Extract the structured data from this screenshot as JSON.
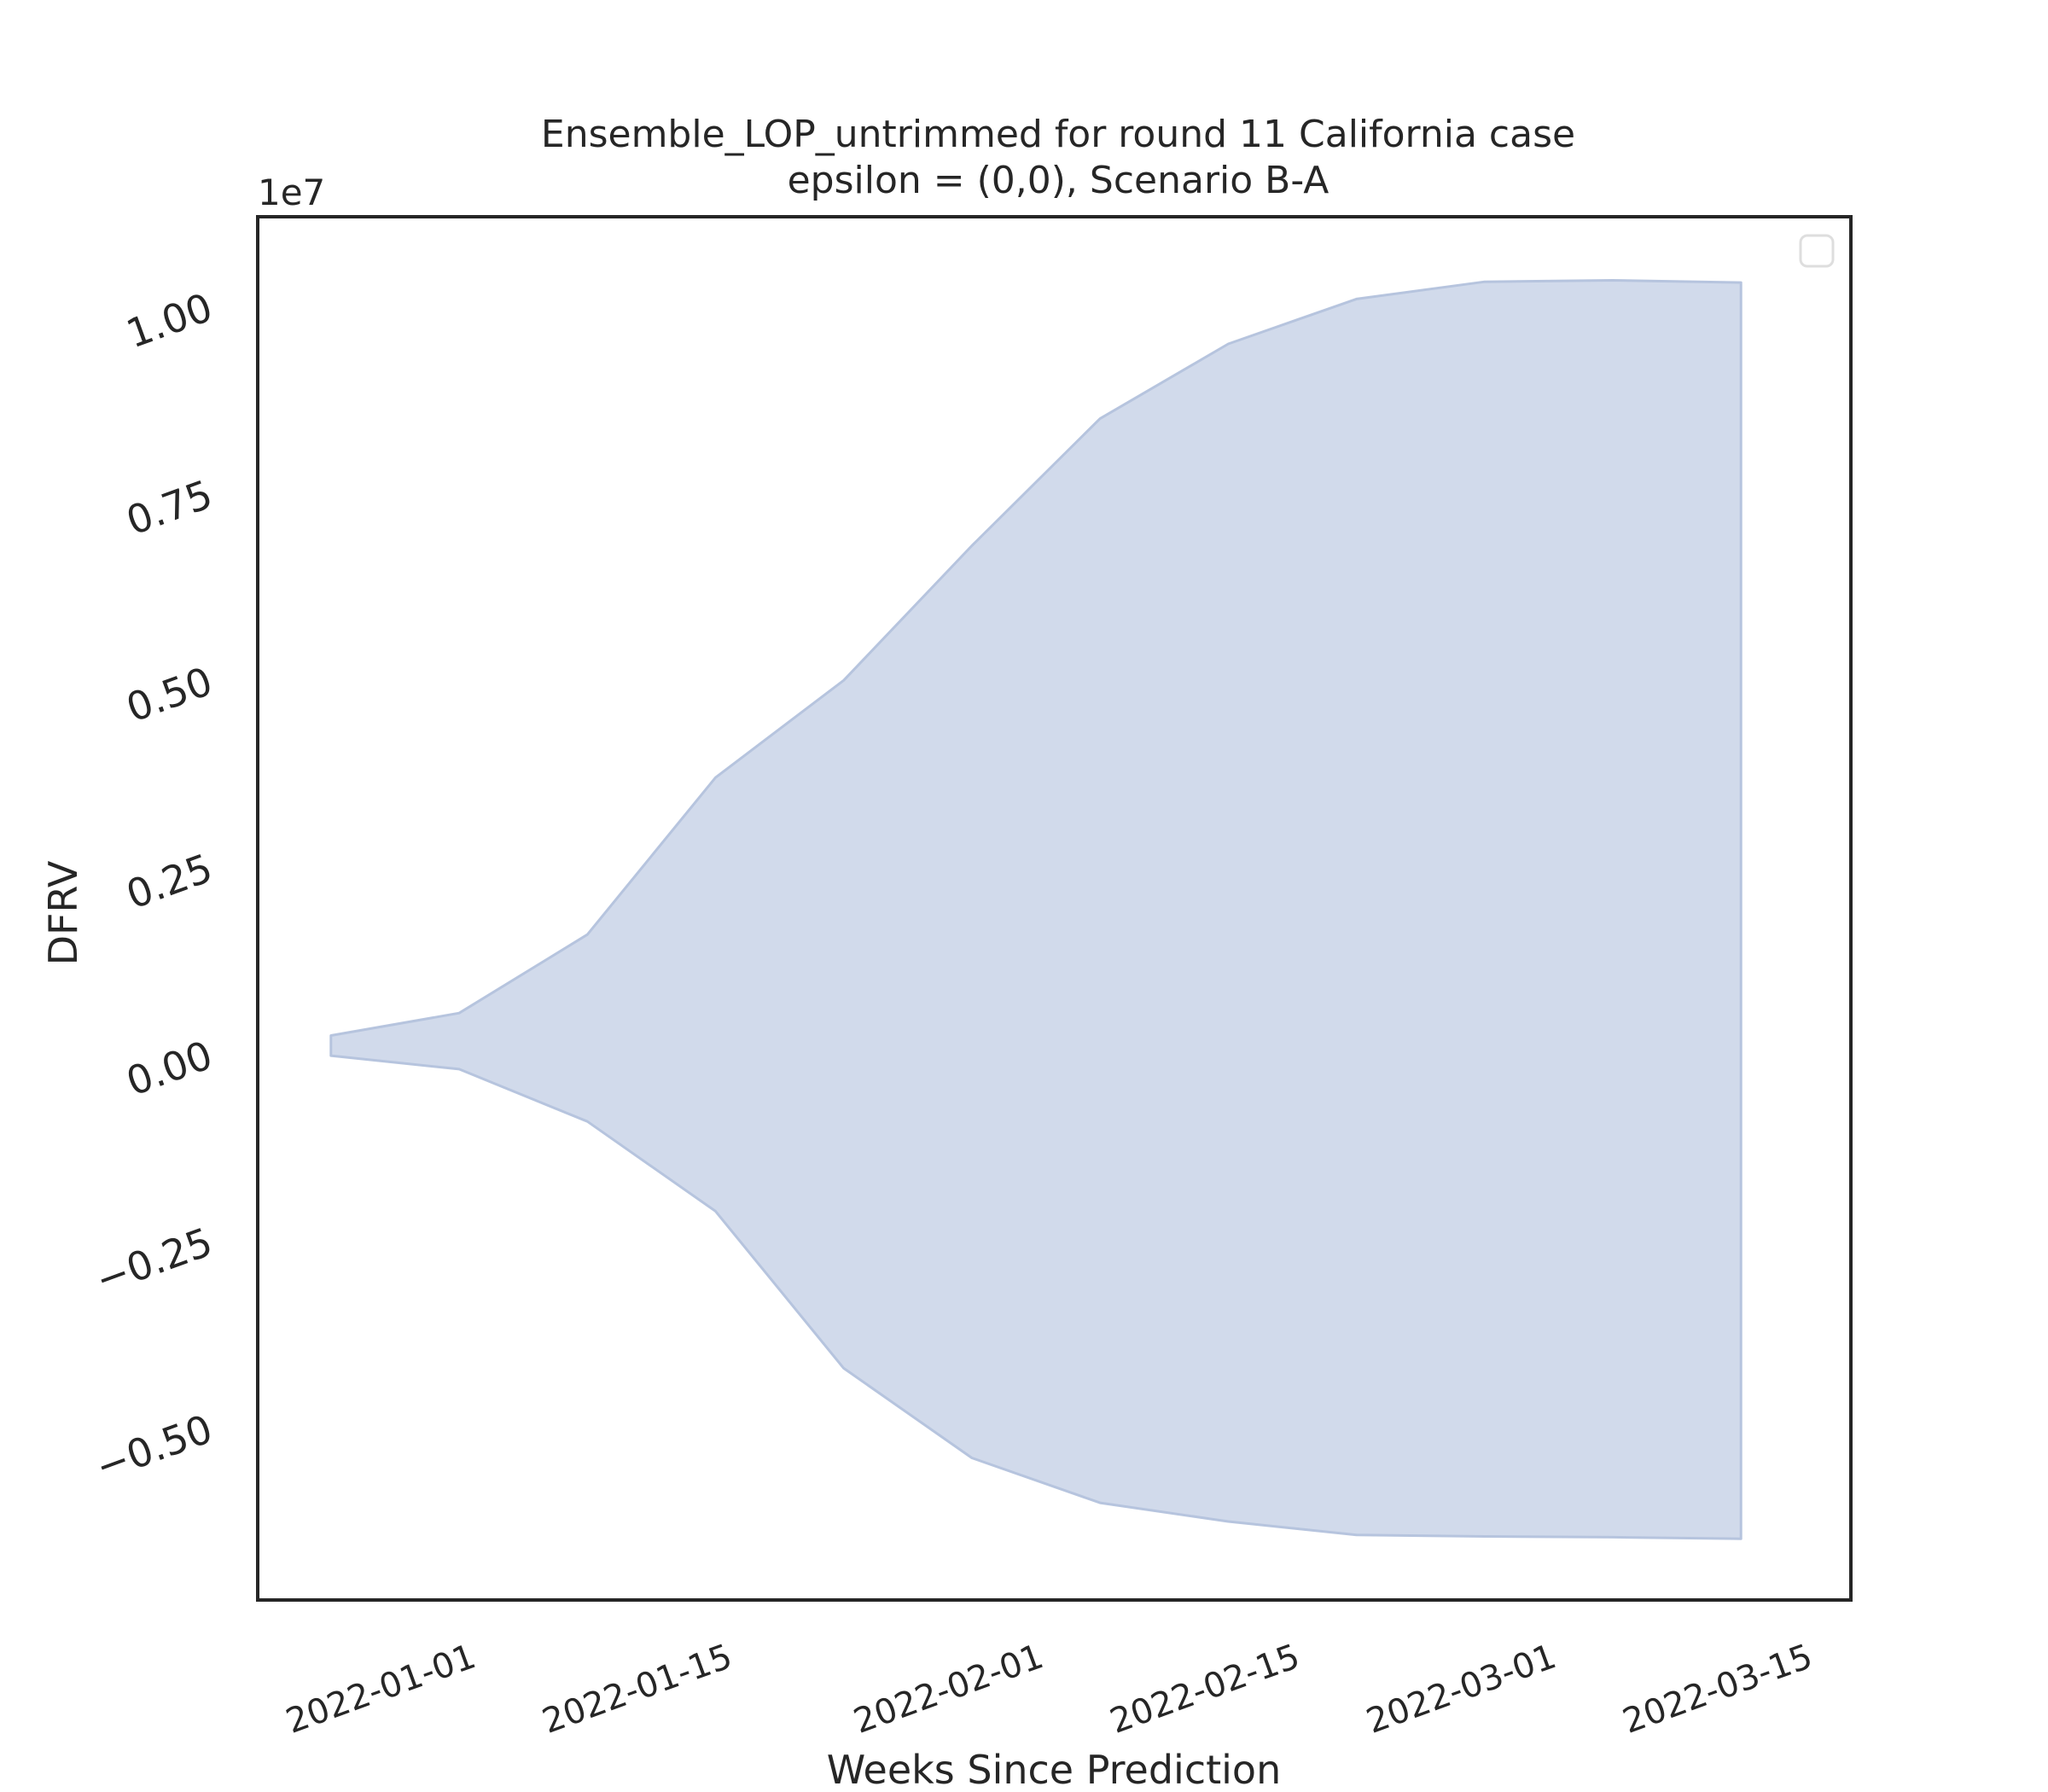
{
  "chart_data": {
    "type": "area",
    "title": "Ensemble_LOP_untrimmed for round 11 California case",
    "subtitle": "epsilon = (0,0), Scenario B-A",
    "xlabel": "Weeks Since Prediction",
    "ylabel": "DFRV",
    "y_offset_label": "1e7",
    "y_scale": 10000000,
    "x_tick_labels": [
      "2022-01-01",
      "2022-01-15",
      "2022-02-01",
      "2022-02-15",
      "2022-03-01",
      "2022-03-15"
    ],
    "y_tick_labels": [
      "−0.50",
      "−0.25",
      "0.00",
      "0.25",
      "0.50",
      "0.75",
      "1.00"
    ],
    "y_ticks": [
      -0.5,
      -0.25,
      0,
      0.25,
      0.5,
      0.75,
      1.0
    ],
    "xlim": [
      "2021-12-21",
      "2022-03-18"
    ],
    "ylim": [
      -0.73,
      1.12
    ],
    "grid": false,
    "legend": "top-right (empty)",
    "fill_color": "#d1daeb",
    "edge_color": "#b6c4de",
    "series": [
      {
        "x": [
          "2021-12-25",
          "2022-01-01",
          "2022-01-08",
          "2022-01-15",
          "2022-01-22",
          "2022-01-29",
          "2022-02-05",
          "2022-02-12",
          "2022-02-19",
          "2022-02-26",
          "2022-03-05",
          "2022-03-12"
        ],
        "upper": [
          0.025,
          0.055,
          0.16,
          0.37,
          0.5,
          0.68,
          0.85,
          0.95,
          1.01,
          1.033,
          1.035,
          1.032
        ],
        "lower": [
          -0.002,
          -0.02,
          -0.09,
          -0.21,
          -0.42,
          -0.54,
          -0.6,
          -0.625,
          -0.643,
          -0.645,
          -0.646,
          -0.648
        ]
      }
    ]
  }
}
